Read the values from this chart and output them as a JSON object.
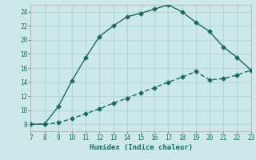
{
  "xlabel": "Humidex (Indice chaleur)",
  "background_color": "#cce8e8",
  "line_color": "#1a6b5a",
  "markersize": 2.5,
  "linewidth": 1.0,
  "xlim": [
    7,
    23
  ],
  "ylim": [
    7,
    25
  ],
  "xticks": [
    7,
    8,
    9,
    10,
    11,
    12,
    13,
    14,
    15,
    16,
    17,
    18,
    19,
    20,
    21,
    22,
    23
  ],
  "yticks": [
    8,
    10,
    12,
    14,
    16,
    18,
    20,
    22,
    24
  ],
  "grid_color": "#b0d8d8",
  "series1_x": [
    7,
    8,
    9,
    10,
    11,
    12,
    13,
    14,
    15,
    16,
    17,
    18,
    19,
    20,
    21,
    22,
    23
  ],
  "series1_y": [
    8.0,
    8.0,
    10.5,
    14.2,
    17.5,
    20.5,
    22.0,
    23.3,
    23.8,
    24.4,
    25.0,
    24.0,
    22.5,
    21.2,
    19.0,
    17.5,
    15.7
  ],
  "series2_x": [
    7,
    8,
    9,
    10,
    11,
    12,
    13,
    14,
    15,
    16,
    17,
    18,
    19,
    20,
    21,
    22,
    23
  ],
  "series2_y": [
    8.0,
    8.0,
    8.2,
    8.8,
    9.5,
    10.2,
    11.0,
    11.7,
    12.5,
    13.2,
    14.0,
    14.7,
    15.5,
    14.3,
    14.5,
    15.0,
    15.7
  ]
}
